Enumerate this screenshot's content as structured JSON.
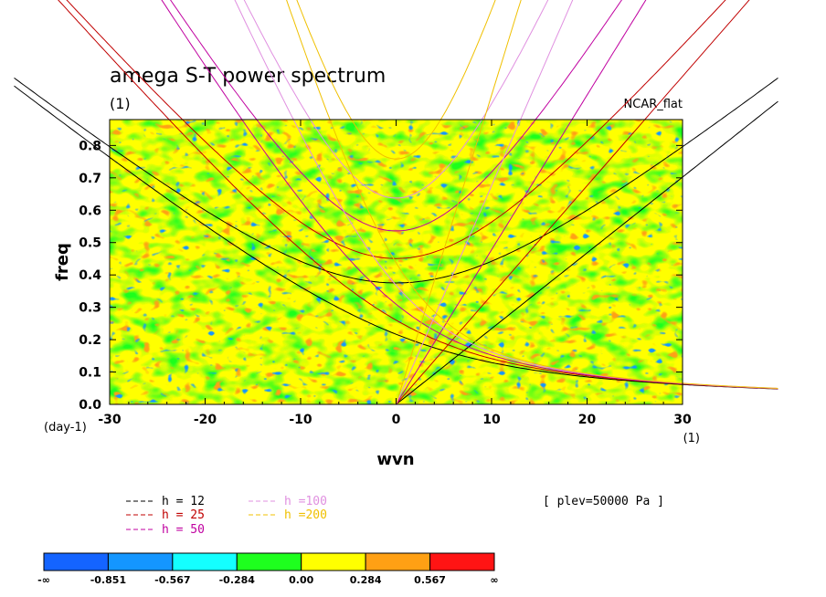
{
  "chart_data": {
    "type": "heatmap",
    "title": "amega S-T power spectrum",
    "subtitle": "(1)",
    "colormap_name": "NCAR_flat",
    "xlabel": "wvn",
    "ylabel": "freq",
    "x_units": "(1)",
    "y_units": "(day-1)",
    "xlim": [
      -30,
      30
    ],
    "ylim": [
      0,
      0.88
    ],
    "x_ticks": [
      -30,
      -20,
      -10,
      0,
      10,
      20,
      30
    ],
    "x_tick_labels": [
      "-30",
      "-20",
      "-10",
      "0",
      "10",
      "20",
      "30"
    ],
    "y_ticks": [
      0,
      0.1,
      0.2,
      0.3,
      0.4,
      0.5,
      0.6,
      0.7,
      0.8
    ],
    "y_tick_labels": [
      "0.0",
      "0.1",
      "0.2",
      "0.3",
      "0.4",
      "0.5",
      "0.6",
      "0.7",
      "0.8"
    ],
    "annotation": "[ plev=50000 Pa ]",
    "colorbar": {
      "colors": [
        "#1464ff",
        "#1496ff",
        "#14ffff",
        "#1eff1e",
        "#ffff00",
        "#ffa014",
        "#ff1414"
      ],
      "labels": [
        "-∞",
        "-0.851",
        "-0.567",
        "-0.284",
        "0.00",
        "0.284",
        "0.567",
        "∞"
      ]
    },
    "dispersion_curves": [
      {
        "label": "h = 12",
        "color": "#000000",
        "h": 12
      },
      {
        "label": "h = 25",
        "color": "#c00000",
        "h": 25
      },
      {
        "label": "h = 50",
        "color": "#c000a0",
        "h": 50
      },
      {
        "label": "h =100",
        "color": "#e090e0",
        "h": 100
      },
      {
        "label": "h =200",
        "color": "#f0c000",
        "h": 200
      }
    ],
    "legend_position": "bottom-left"
  },
  "colors": {
    "background": "#ffffff",
    "dominant_fill": [
      "#1eff1e",
      "#ffff00"
    ]
  }
}
